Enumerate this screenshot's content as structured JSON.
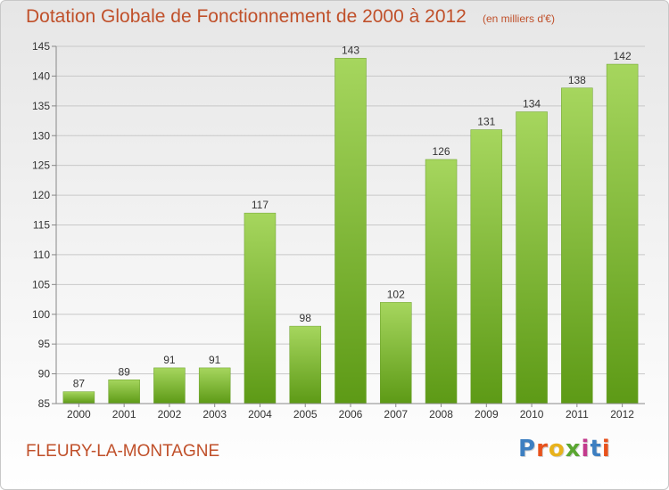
{
  "header": {
    "title": "Dotation Globale de Fonctionnement de 2000 à 2012",
    "subtitle": "(en milliers d'€)"
  },
  "footer": {
    "place": "FLEURY-LA-MONTAGNE",
    "brand": "Proxiti",
    "brand_colors": [
      "#3d7fc1",
      "#e8521c",
      "#e8b21c",
      "#5aa631",
      "#c33a8d",
      "#3d7fc1",
      "#e8521c"
    ]
  },
  "colors": {
    "title": "#c0502a",
    "bar_top": "#a6d65e",
    "bar_bottom": "#5d9a16",
    "grid": "#c8c8c8",
    "axis": "#888888"
  },
  "chart_data": {
    "type": "bar",
    "categories": [
      "2000",
      "2001",
      "2002",
      "2003",
      "2004",
      "2005",
      "2006",
      "2007",
      "2008",
      "2009",
      "2010",
      "2011",
      "2012"
    ],
    "values": [
      87,
      89,
      91,
      91,
      117,
      98,
      143,
      102,
      126,
      131,
      134,
      138,
      142
    ],
    "ylim": [
      85,
      145
    ],
    "yticks": [
      85,
      90,
      95,
      100,
      105,
      110,
      115,
      120,
      125,
      130,
      135,
      140,
      145
    ],
    "grid": true,
    "legend": "none"
  }
}
